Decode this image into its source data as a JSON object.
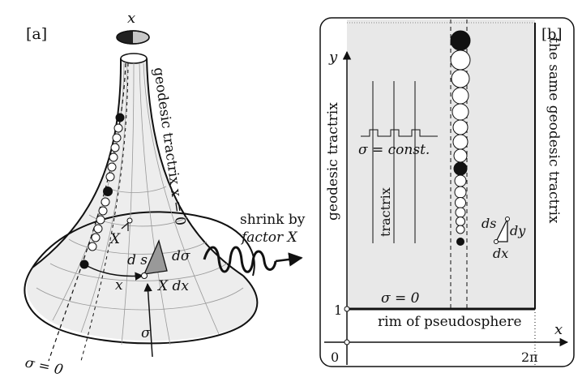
{
  "panel_a": {
    "label": "[a]",
    "top_var": "x",
    "geodesic_label": "geodesic tractrix  x = 0",
    "shrink_line1": "shrink by",
    "shrink_line2": "factor X",
    "X_label": "X",
    "ds_label": "d s",
    "dsigma_label": "dσ",
    "x_arrow_label": "x",
    "Xdx_label": "X dx",
    "sigma_label": "σ",
    "sigma0_label": "σ = 0"
  },
  "panel_b": {
    "label": "[b]",
    "y_axis": "y",
    "x_axis": "x",
    "left_label": "geodesic tractrix",
    "right_label": "the same geodesic tractrix",
    "sigma_const": "σ = const.",
    "tractrix_label": "tractrix",
    "sigma0": "σ = 0",
    "rim_label": "rim of pseudosphere",
    "tick_1": "1",
    "tick_0": "0",
    "tick_2pi": "2π",
    "ds_label": "ds",
    "dy_label": "dy",
    "dx_label": "dx"
  }
}
